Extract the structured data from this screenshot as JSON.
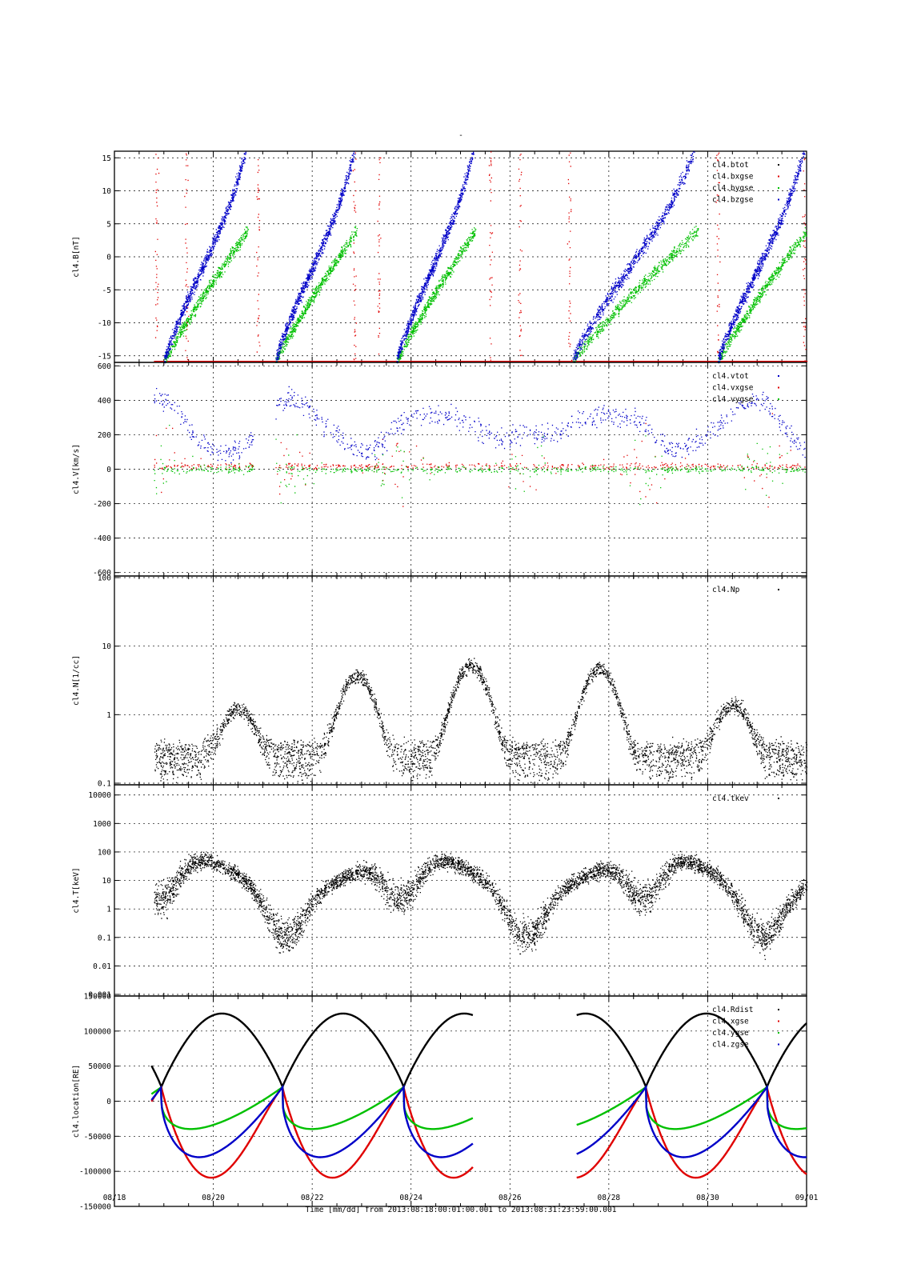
{
  "figure": {
    "title_mark": "-",
    "xlabel": "Time [mm/dd]  from 2013:08:18:00:01:00.001  to  2013:08:31:23:59:00.001",
    "x_tick_labels": [
      "08/18",
      "08/20",
      "08/22",
      "08/24",
      "08/26",
      "08/28",
      "08/30",
      "09/01"
    ]
  },
  "chart_data": [
    {
      "type": "scatter",
      "ylabel": "cl4.B[nT]",
      "ylim": [
        -16,
        16
      ],
      "yticks": [
        -15,
        -10,
        -5,
        0,
        5,
        10,
        15
      ],
      "grid": true,
      "legend_position": "top-right",
      "x_unit": "days since 2013-08-18",
      "xlim": [
        0,
        14
      ],
      "series": [
        {
          "name": "cl4.btot",
          "color": "#000000"
        },
        {
          "name": "cl4.bxgse",
          "color": "#e00000"
        },
        {
          "name": "cl4.bygse",
          "color": "#00c000"
        },
        {
          "name": "cl4.bzgse",
          "color": "#0000c8"
        }
      ]
    },
    {
      "type": "scatter",
      "ylabel": "cl4.V[km/s]",
      "ylim": [
        -620,
        620
      ],
      "yticks": [
        -600,
        -400,
        -200,
        0,
        200,
        400,
        600
      ],
      "grid": true,
      "legend_position": "top-right",
      "xlim": [
        0,
        14
      ],
      "series": [
        {
          "name": "cl4.vtot",
          "color": "#0000c8"
        },
        {
          "name": "cl4.vxgse",
          "color": "#e00000"
        },
        {
          "name": "cl4.vygse",
          "color": "#00c000"
        }
      ]
    },
    {
      "type": "scatter",
      "ylabel": "cl4.N[1/cc]",
      "ylim": [
        0.1,
        100
      ],
      "log_scale": true,
      "yticks": [
        "0.1",
        "1",
        "10",
        "100"
      ],
      "grid": true,
      "legend_position": "top-right",
      "xlim": [
        0,
        14
      ],
      "series": [
        {
          "name": "cl4.Np",
          "color": "#000000"
        }
      ]
    },
    {
      "type": "scatter",
      "ylabel": "cl4.T[keV]",
      "ylim": [
        0.001,
        20000
      ],
      "log_scale": true,
      "yticks": [
        "0.001",
        "0.01",
        "0.1",
        "1",
        "10",
        "100",
        "1000",
        "10000"
      ],
      "grid": true,
      "legend_position": "top-right",
      "xlim": [
        0,
        14
      ],
      "series": [
        {
          "name": "cl4.tkev",
          "color": "#000000"
        }
      ]
    },
    {
      "type": "line",
      "ylabel": "cl4.location[RE]",
      "ylim": [
        -150000,
        150000
      ],
      "yticks": [
        "-150000",
        "-100000",
        "-50000",
        "0",
        "50000",
        "100000",
        "150000"
      ],
      "grid": true,
      "legend_position": "top-right",
      "xlim": [
        0,
        14
      ],
      "series": [
        {
          "name": "cl4.Rdist",
          "color": "#000000"
        },
        {
          "name": "cl4.xgse",
          "color": "#e00000"
        },
        {
          "name": "cl4.ygse",
          "color": "#00c000"
        },
        {
          "name": "cl4.zgse",
          "color": "#0000c8"
        }
      ],
      "data_gaps": [
        [
          7.25,
          7.45
        ],
        [
          14.0,
          14.0
        ]
      ],
      "rdist_peak": 125000,
      "xgse_min": -110000,
      "ygse_min": -40000,
      "zgse_min": -80000,
      "orbit_period_days": 2.45
    }
  ]
}
